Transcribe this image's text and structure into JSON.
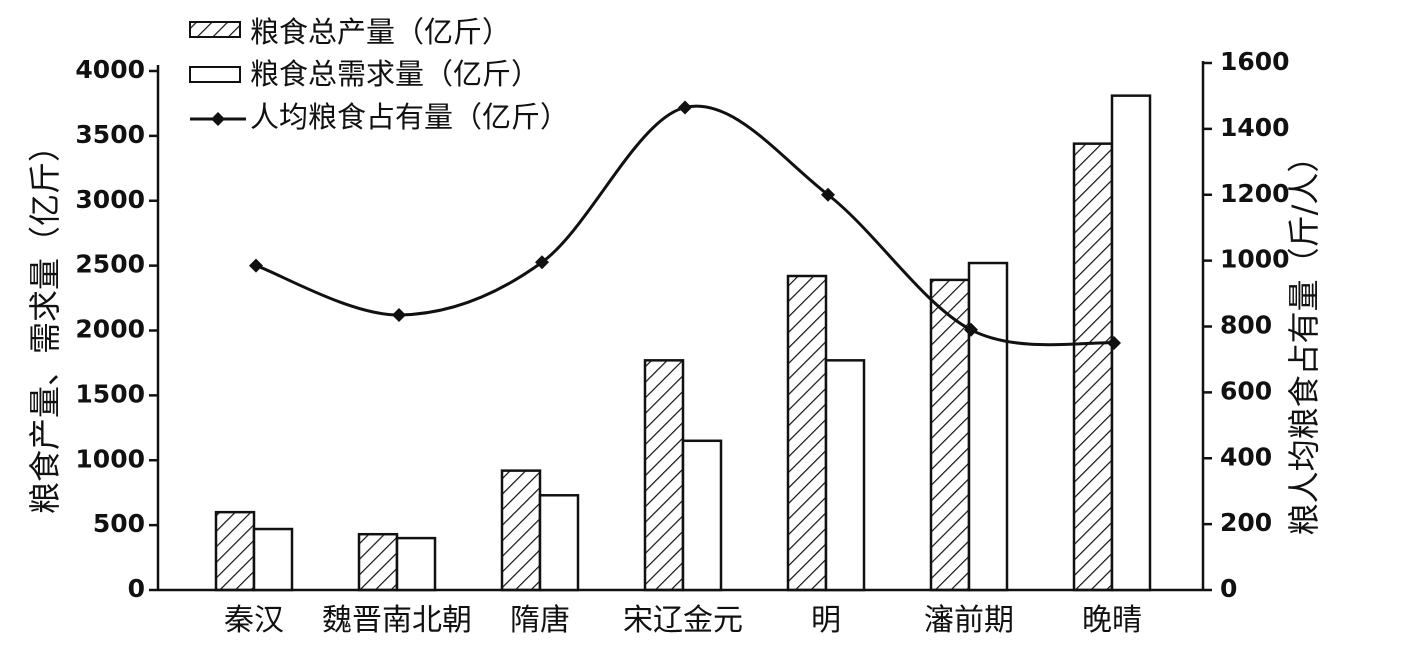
{
  "chart_data": {
    "type": "bar",
    "categories": [
      "秦汉",
      "魏晋南北朝",
      "隋唐",
      "宋辽金元",
      "明",
      "瀋前期",
      "晚晴"
    ],
    "series": [
      {
        "name": "粮食总产量（亿斤）",
        "kind": "bar",
        "pattern": "hatched",
        "axis": "left",
        "values": [
          600,
          430,
          920,
          1770,
          2420,
          2390,
          3440
        ]
      },
      {
        "name": "粮食总需求量（亿斤）",
        "kind": "bar",
        "pattern": "white",
        "axis": "left",
        "values": [
          470,
          400,
          730,
          1150,
          1770,
          2520,
          3810
        ]
      },
      {
        "name": "人均粮食占有量（亿斤）",
        "kind": "line",
        "marker": "diamond",
        "axis": "right",
        "values": [
          985,
          835,
          995,
          1465,
          1200,
          790,
          750
        ]
      }
    ],
    "ylabel": "粮食产量、需求量（亿斤）",
    "ylabel_right": "粮人均粮食占有量（斤/人）",
    "ylim": [
      0,
      4000
    ],
    "yticks": [
      0,
      500,
      1000,
      1500,
      2000,
      2500,
      3000,
      3500,
      4000
    ],
    "ylim_right": [
      0,
      1600
    ],
    "yticks_right": [
      0,
      200,
      400,
      600,
      800,
      1000,
      1200,
      1400,
      1600
    ],
    "grid": false,
    "legend_position": "top-left"
  }
}
